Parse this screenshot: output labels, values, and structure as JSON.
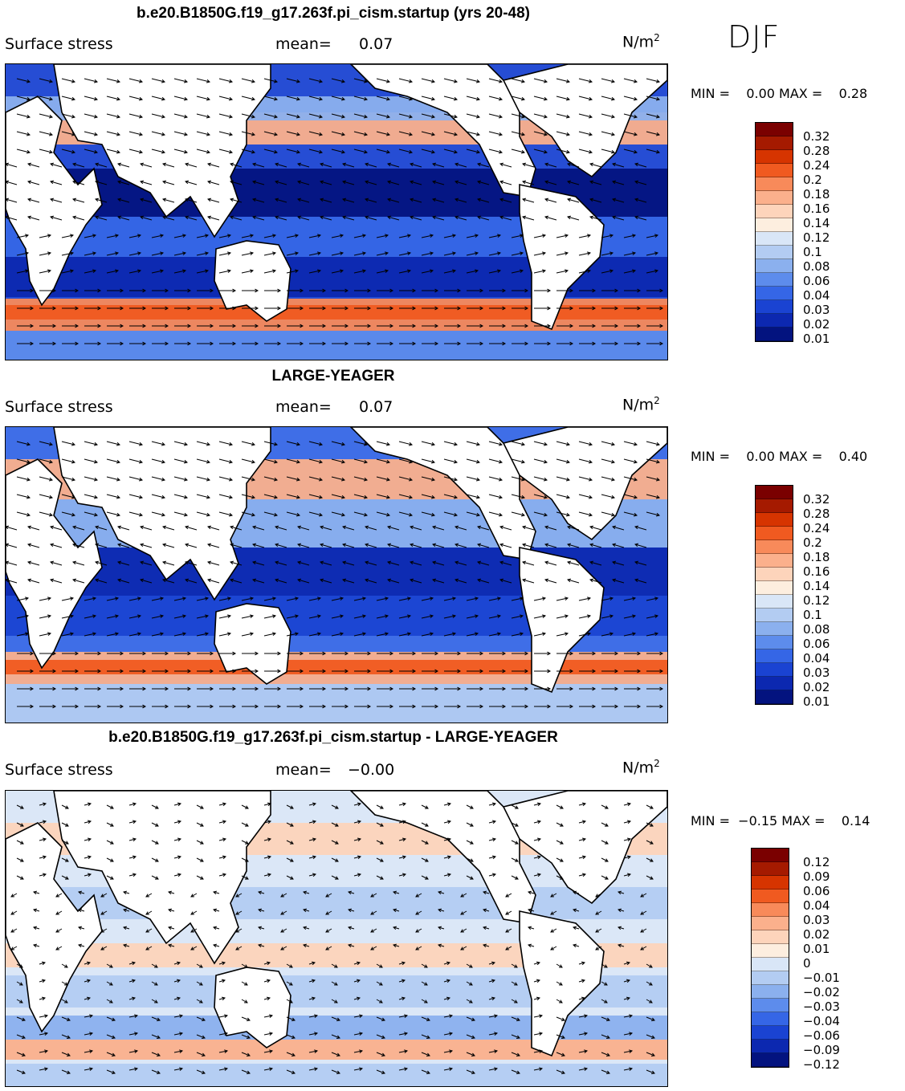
{
  "season": "DJF",
  "units_text": "N/m",
  "units_sup": "2",
  "panels": [
    {
      "title": "b.e20.B1850G.f19_g17.263f.pi_cism.startup (yrs 20-48)",
      "left_label": "Surface stress",
      "mean_label": "mean=",
      "mean_value": "0.07",
      "min_label": "MIN =",
      "min_value": "0.00",
      "max_label": "MAX =",
      "max_value": "0.28",
      "colorbar_ticks": [
        "0.32",
        "0.28",
        "0.24",
        "0.2",
        "0.18",
        "0.16",
        "0.14",
        "0.12",
        "0.1",
        "0.08",
        "0.06",
        "0.04",
        "0.03",
        "0.02",
        "0.01"
      ]
    },
    {
      "title": "LARGE-YEAGER",
      "left_label": "Surface stress",
      "mean_label": "mean=",
      "mean_value": "0.07",
      "min_label": "MIN =",
      "min_value": "0.00",
      "max_label": "MAX =",
      "max_value": "0.40",
      "colorbar_ticks": [
        "0.32",
        "0.28",
        "0.24",
        "0.2",
        "0.18",
        "0.16",
        "0.14",
        "0.12",
        "0.1",
        "0.08",
        "0.06",
        "0.04",
        "0.03",
        "0.02",
        "0.01"
      ]
    },
    {
      "title": "b.e20.B1850G.f19_g17.263f.pi_cism.startup - LARGE-YEAGER",
      "left_label": "Surface stress",
      "mean_label": "mean=",
      "mean_value": "−0.00",
      "min_label": "MIN =",
      "min_value": "−0.15",
      "max_label": "MAX =",
      "max_value": "0.14",
      "colorbar_ticks": [
        "0.12",
        "0.09",
        "0.06",
        "0.04",
        "0.03",
        "0.02",
        "0.01",
        "0",
        "−0.01",
        "−0.02",
        "−0.03",
        "−0.04",
        "−0.06",
        "−0.09",
        "−0.12"
      ]
    }
  ],
  "colorbar_colors": [
    "#7a0000",
    "#a51a00",
    "#d63400",
    "#f05a20",
    "#f88a5a",
    "#fbb08c",
    "#fdd4bb",
    "#fdeedf",
    "#d9e6f7",
    "#b3ccf2",
    "#8bb0ee",
    "#5d8cec",
    "#3566e6",
    "#1a43d2",
    "#0c28b0",
    "#03137f"
  ]
}
